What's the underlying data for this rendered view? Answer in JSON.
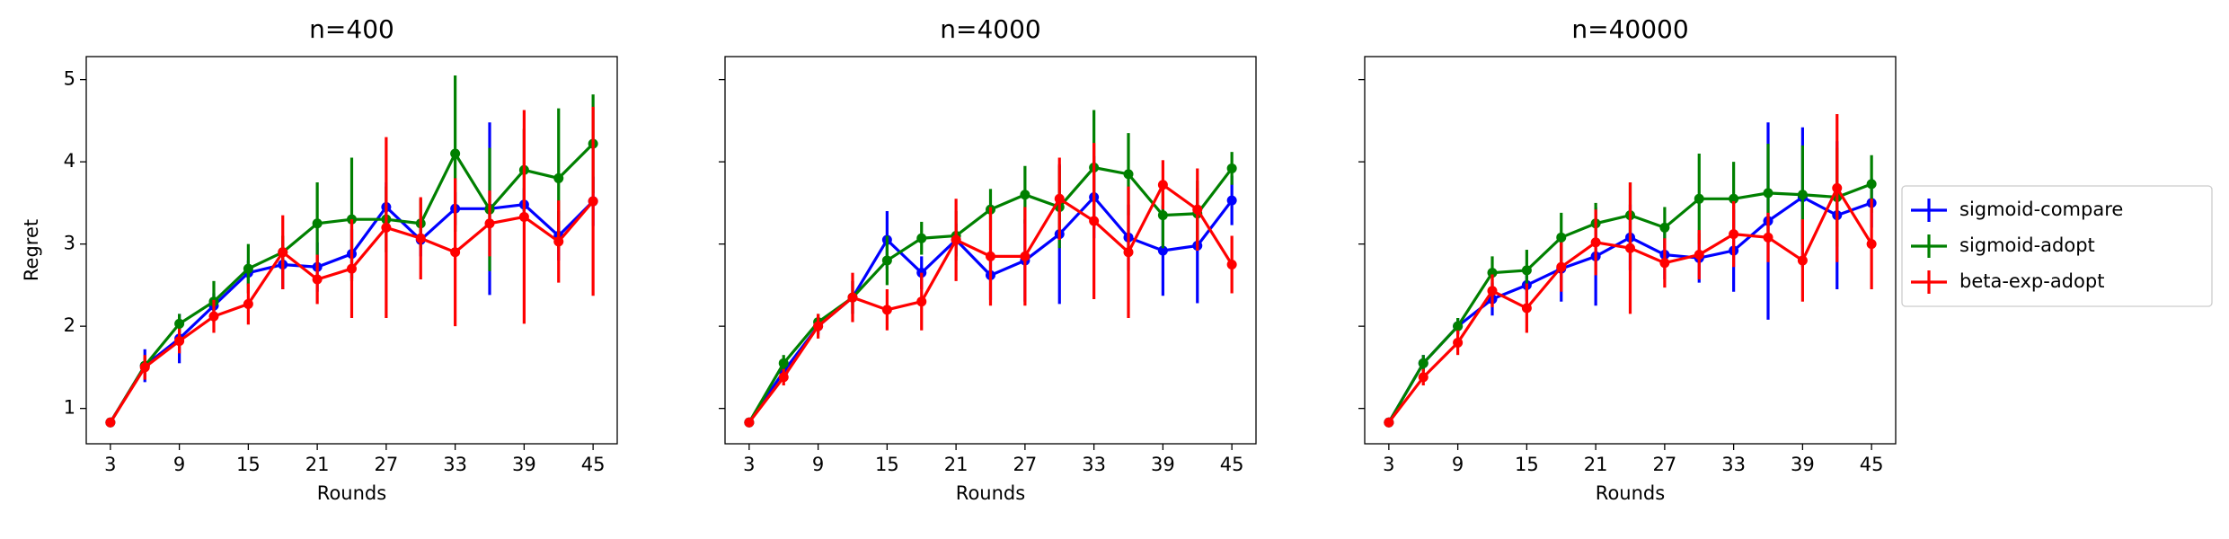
{
  "chart_data": [
    {
      "type": "line",
      "title": "n=400",
      "xlabel": "Rounds",
      "ylabel": "Regret",
      "x": [
        3,
        6,
        9,
        12,
        15,
        18,
        21,
        24,
        27,
        30,
        33,
        36,
        39,
        42,
        45
      ],
      "xlim": [
        0.9,
        47.1
      ],
      "xticks": [
        3,
        9,
        15,
        21,
        27,
        33,
        39,
        45
      ],
      "ylim": [
        0.57,
        5.28
      ],
      "yticks": [
        1,
        2,
        3,
        4,
        5
      ],
      "series": [
        {
          "name": "sigmoid-compare",
          "color": "#0000ff",
          "values": [
            0.83,
            1.52,
            1.85,
            2.25,
            2.65,
            2.75,
            2.72,
            2.88,
            3.45,
            3.05,
            3.43,
            3.43,
            3.48,
            3.1,
            3.52
          ],
          "errors": [
            0.03,
            0.2,
            0.3,
            0.15,
            0.15,
            0.3,
            0.3,
            0.3,
            0.3,
            0.2,
            0.2,
            1.05,
            0.2,
            0.3,
            0.3
          ]
        },
        {
          "name": "sigmoid-adopt",
          "color": "#008000",
          "values": [
            0.83,
            1.52,
            2.03,
            2.3,
            2.7,
            2.9,
            3.25,
            3.3,
            3.3,
            3.25,
            4.1,
            3.42,
            3.9,
            3.8,
            4.22
          ],
          "errors": [
            0.03,
            0.1,
            0.12,
            0.25,
            0.3,
            0.2,
            0.5,
            0.75,
            0.4,
            0.3,
            0.95,
            0.75,
            0.5,
            0.85,
            0.6
          ]
        },
        {
          "name": "beta-exp-adopt",
          "color": "#ff0000",
          "values": [
            0.83,
            1.5,
            1.82,
            2.12,
            2.27,
            2.9,
            2.57,
            2.7,
            3.2,
            3.07,
            2.9,
            3.25,
            3.33,
            3.03,
            3.52
          ],
          "errors": [
            0.03,
            0.15,
            0.15,
            0.2,
            0.25,
            0.45,
            0.3,
            0.6,
            1.1,
            0.5,
            0.9,
            0.4,
            1.3,
            0.5,
            1.15
          ]
        }
      ]
    },
    {
      "type": "line",
      "title": "n=4000",
      "xlabel": "Rounds",
      "x": [
        3,
        6,
        9,
        12,
        15,
        18,
        21,
        24,
        27,
        30,
        33,
        36,
        39,
        42,
        45
      ],
      "xlim": [
        0.9,
        47.1
      ],
      "xticks": [
        3,
        9,
        15,
        21,
        27,
        33,
        39,
        45
      ],
      "ylim": [
        0.57,
        5.28
      ],
      "yticks": [
        1,
        2,
        3,
        4,
        5
      ],
      "series": [
        {
          "name": "sigmoid-compare",
          "color": "#0000ff",
          "values": [
            0.83,
            1.45,
            2.0,
            2.35,
            3.05,
            2.65,
            3.05,
            2.62,
            2.8,
            3.12,
            3.57,
            3.08,
            2.92,
            2.98,
            3.53
          ],
          "errors": [
            0.03,
            0.1,
            0.1,
            0.2,
            0.35,
            0.2,
            0.2,
            0.3,
            0.5,
            0.85,
            0.5,
            0.4,
            0.55,
            0.7,
            0.3
          ]
        },
        {
          "name": "sigmoid-adopt",
          "color": "#008000",
          "values": [
            0.83,
            1.55,
            2.05,
            2.35,
            2.8,
            3.07,
            3.1,
            3.42,
            3.6,
            3.45,
            3.93,
            3.85,
            3.35,
            3.37,
            3.92
          ],
          "errors": [
            0.03,
            0.1,
            0.1,
            0.2,
            0.3,
            0.2,
            0.3,
            0.25,
            0.35,
            0.5,
            0.7,
            0.5,
            0.4,
            0.4,
            0.2
          ]
        },
        {
          "name": "beta-exp-adopt",
          "color": "#ff0000",
          "values": [
            0.83,
            1.38,
            2.0,
            2.35,
            2.2,
            2.3,
            3.05,
            2.85,
            2.85,
            3.55,
            3.28,
            2.9,
            3.72,
            3.42,
            2.75
          ],
          "errors": [
            0.03,
            0.1,
            0.15,
            0.3,
            0.25,
            0.35,
            0.5,
            0.6,
            0.6,
            0.5,
            0.95,
            0.8,
            0.3,
            0.5,
            0.35
          ]
        }
      ]
    },
    {
      "type": "line",
      "title": "n=40000",
      "xlabel": "Rounds",
      "legend": "outside right",
      "x": [
        3,
        6,
        9,
        12,
        15,
        18,
        21,
        24,
        27,
        30,
        33,
        36,
        39,
        42,
        45
      ],
      "xlim": [
        0.9,
        47.1
      ],
      "xticks": [
        3,
        9,
        15,
        21,
        27,
        33,
        39,
        45
      ],
      "ylim": [
        0.57,
        5.28
      ],
      "yticks": [
        1,
        2,
        3,
        4,
        5
      ],
      "series": [
        {
          "name": "sigmoid-compare",
          "color": "#0000ff",
          "values": [
            0.83,
            1.55,
            2.0,
            2.33,
            2.5,
            2.7,
            2.85,
            3.08,
            2.87,
            2.83,
            2.92,
            3.28,
            3.57,
            3.35,
            3.5
          ],
          "errors": [
            0.03,
            0.1,
            0.1,
            0.2,
            0.2,
            0.4,
            0.6,
            0.4,
            0.3,
            0.3,
            0.5,
            1.2,
            0.85,
            0.9,
            0.3
          ]
        },
        {
          "name": "sigmoid-adopt",
          "color": "#008000",
          "values": [
            0.83,
            1.55,
            2.0,
            2.65,
            2.68,
            3.08,
            3.25,
            3.35,
            3.2,
            3.55,
            3.55,
            3.62,
            3.6,
            3.57,
            3.73
          ],
          "errors": [
            0.03,
            0.1,
            0.1,
            0.2,
            0.25,
            0.3,
            0.25,
            0.4,
            0.25,
            0.55,
            0.45,
            0.6,
            0.6,
            0.6,
            0.35
          ]
        },
        {
          "name": "beta-exp-adopt",
          "color": "#ff0000",
          "values": [
            0.83,
            1.38,
            1.8,
            2.43,
            2.22,
            2.72,
            3.02,
            2.95,
            2.77,
            2.87,
            3.12,
            3.08,
            2.8,
            3.68,
            3.0
          ],
          "errors": [
            0.03,
            0.1,
            0.15,
            0.2,
            0.3,
            0.3,
            0.4,
            0.8,
            0.3,
            0.3,
            0.4,
            0.3,
            0.5,
            0.9,
            0.55
          ]
        }
      ]
    }
  ]
}
